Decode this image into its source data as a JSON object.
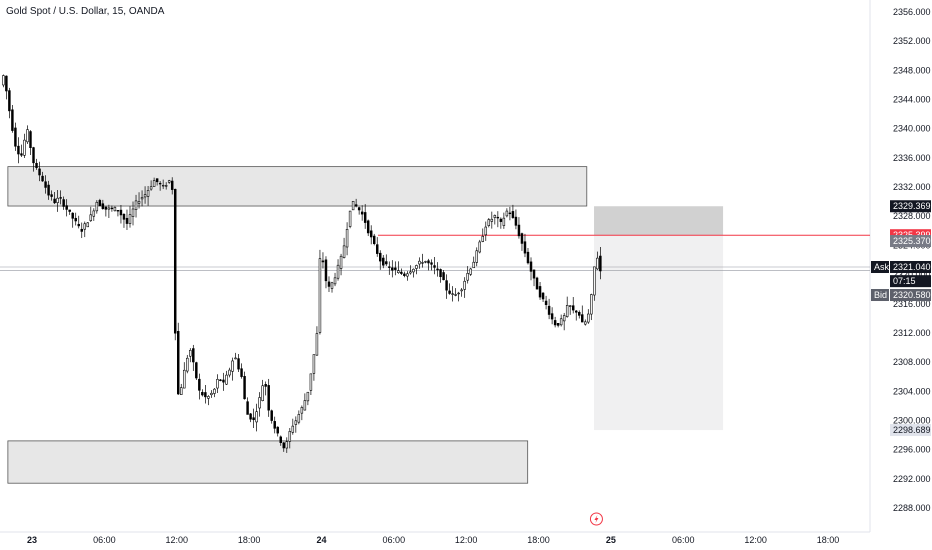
{
  "header": {
    "title": "Gold Spot / U.S. Dollar, 15, OANDA"
  },
  "colors": {
    "bull_fill": "#ffffff",
    "bear_fill": "#000000",
    "wick": "#000000",
    "zone_fill": "#e7e7e7",
    "zone_stroke": "#555555",
    "stop_fill": "#c9c9c9",
    "target_fill": "#f0f0f1",
    "entry_line": "#f23645",
    "price_line": "#9598a1"
  },
  "chart_data": {
    "type": "candlestick",
    "symbol": "Gold Spot / U.S. Dollar",
    "timeframe": "15",
    "source": "OANDA",
    "yrange": [
      2286,
      2357
    ],
    "y_ticks": [
      2356,
      2352,
      2348,
      2344,
      2340,
      2336,
      2332,
      2328,
      2324,
      2320,
      2316,
      2312,
      2308,
      2304,
      2300,
      2296,
      2292,
      2288
    ],
    "y_tick_labels": [
      "2356.000",
      "2352.000",
      "2348.000",
      "2344.000",
      "2340.000",
      "2336.000",
      "2332.000",
      "2328.000",
      "2324.000",
      "2320.000",
      "2316.000",
      "2312.000",
      "2308.000",
      "2304.000",
      "2300.000",
      "2296.000",
      "2292.000",
      "2288.000"
    ],
    "x_tick_labels": [
      {
        "label": "23",
        "hour": 0,
        "bold": true
      },
      {
        "label": "06:00",
        "hour": 6,
        "bold": false
      },
      {
        "label": "12:00",
        "hour": 12,
        "bold": false
      },
      {
        "label": "18:00",
        "hour": 18,
        "bold": false
      },
      {
        "label": "24",
        "hour": 24,
        "bold": true
      },
      {
        "label": "06:00",
        "hour": 30,
        "bold": false
      },
      {
        "label": "12:00",
        "hour": 36,
        "bold": false
      },
      {
        "label": "18:00",
        "hour": 42,
        "bold": false
      },
      {
        "label": "25",
        "hour": 48,
        "bold": true
      },
      {
        "label": "06:00",
        "hour": 54,
        "bold": false
      },
      {
        "label": "12:00",
        "hour": 60,
        "bold": false
      },
      {
        "label": "18:00",
        "hour": 66,
        "bold": false
      }
    ],
    "x_hour_range": [
      -2.6,
      70
    ],
    "candle_interval_hours": 0.25,
    "anchors": [
      [
        -2.5,
        2346
      ],
      [
        -2.2,
        2347.5
      ],
      [
        -1.9,
        2344
      ],
      [
        -1.6,
        2341
      ],
      [
        -1.3,
        2338
      ],
      [
        -0.8,
        2336
      ],
      [
        -0.3,
        2340
      ],
      [
        0.3,
        2335
      ],
      [
        1.0,
        2333
      ],
      [
        1.5,
        2331
      ],
      [
        2.0,
        2330
      ],
      [
        2.4,
        2330.5
      ],
      [
        3.0,
        2329
      ],
      [
        3.8,
        2327
      ],
      [
        4.2,
        2326
      ],
      [
        5.0,
        2328
      ],
      [
        5.5,
        2330
      ],
      [
        6.2,
        2329
      ],
      [
        7.2,
        2329
      ],
      [
        8.0,
        2327
      ],
      [
        8.8,
        2330
      ],
      [
        9.5,
        2331
      ],
      [
        10.3,
        2333
      ],
      [
        11.0,
        2332
      ],
      [
        11.6,
        2333
      ],
      [
        11.85,
        2331
      ],
      [
        12.05,
        2306
      ],
      [
        12.3,
        2303
      ],
      [
        12.9,
        2308
      ],
      [
        13.2,
        2310
      ],
      [
        13.6,
        2307
      ],
      [
        14.0,
        2304
      ],
      [
        14.6,
        2303
      ],
      [
        15.2,
        2304
      ],
      [
        15.6,
        2306
      ],
      [
        16.0,
        2305
      ],
      [
        16.5,
        2307
      ],
      [
        16.9,
        2309
      ],
      [
        17.5,
        2306
      ],
      [
        17.9,
        2301
      ],
      [
        18.5,
        2300
      ],
      [
        19.0,
        2303
      ],
      [
        19.4,
        2306
      ],
      [
        19.8,
        2301
      ],
      [
        20.5,
        2298
      ],
      [
        21.1,
        2296
      ],
      [
        21.6,
        2299
      ],
      [
        22.0,
        2300
      ],
      [
        22.6,
        2302
      ],
      [
        23.0,
        2304
      ],
      [
        23.3,
        2307
      ],
      [
        23.7,
        2311
      ],
      [
        23.95,
        2315
      ],
      [
        24.05,
        2329
      ],
      [
        24.3,
        2320
      ],
      [
        24.8,
        2318
      ],
      [
        25.3,
        2320
      ],
      [
        25.9,
        2323
      ],
      [
        26.3,
        2327
      ],
      [
        26.6,
        2330
      ],
      [
        27.2,
        2329
      ],
      [
        27.6,
        2328
      ],
      [
        28.0,
        2326
      ],
      [
        28.5,
        2324
      ],
      [
        29.0,
        2322
      ],
      [
        29.6,
        2321
      ],
      [
        30.3,
        2320.5
      ],
      [
        31.0,
        2320
      ],
      [
        31.8,
        2321
      ],
      [
        32.6,
        2322
      ],
      [
        33.4,
        2321
      ],
      [
        34.0,
        2320
      ],
      [
        34.5,
        2318
      ],
      [
        35.1,
        2317
      ],
      [
        35.7,
        2318
      ],
      [
        36.2,
        2320
      ],
      [
        36.8,
        2322
      ],
      [
        37.4,
        2325
      ],
      [
        37.8,
        2327
      ],
      [
        38.5,
        2328
      ],
      [
        39.0,
        2327
      ],
      [
        39.6,
        2329
      ],
      [
        40.2,
        2327
      ],
      [
        40.6,
        2325
      ],
      [
        41.0,
        2323
      ],
      [
        41.4,
        2321
      ],
      [
        41.8,
        2319
      ],
      [
        42.3,
        2317
      ],
      [
        42.7,
        2316
      ],
      [
        43.2,
        2314
      ],
      [
        43.6,
        2313
      ],
      [
        44.2,
        2314
      ],
      [
        44.6,
        2316
      ],
      [
        45.0,
        2315
      ],
      [
        45.4,
        2315
      ],
      [
        45.8,
        2313
      ],
      [
        46.2,
        2314
      ],
      [
        46.6,
        2318
      ],
      [
        46.85,
        2323
      ],
      [
        47.1,
        2322
      ],
      [
        47.25,
        2320.5
      ]
    ],
    "zones": [
      {
        "name": "upper-zone",
        "h0": -2.0,
        "h1": 46.0,
        "top": 2334.8,
        "bottom": 2329.4
      },
      {
        "name": "lower-zone",
        "h0": -2.0,
        "h1": 41.1,
        "top": 2297.2,
        "bottom": 2291.4
      }
    ],
    "position": {
      "h0": 46.6,
      "h1": 57.3,
      "stop": 2329.369,
      "entry": 2325.399,
      "target": 2298.689,
      "entry_line_end_hour": 70
    },
    "price_lines": [
      2321.04,
      2320.58
    ],
    "price_tags": [
      {
        "label": "",
        "value": "2329.369",
        "price": 2329.369,
        "bg": "#131722",
        "fg": "#ffffff"
      },
      {
        "label": "",
        "value": "2325.399",
        "price": 2325.399,
        "bg": "#f23645",
        "fg": "#ffffff"
      },
      {
        "label": "",
        "value": "2325.370",
        "price": 2324.6,
        "bg": "#787b86",
        "fg": "#ffffff"
      },
      {
        "label": "Ask",
        "value": "2321.040",
        "price": 2321.04,
        "bg": "#131722",
        "fg": "#ffffff"
      },
      {
        "label": "",
        "value": "07:15",
        "price": 2319.1,
        "bg": "#131722",
        "fg": "#ffffff"
      },
      {
        "label": "Bid",
        "value": "2320.580",
        "price": 2317.2,
        "bg": "#5d606b",
        "fg": "#ffffff"
      },
      {
        "label": "",
        "value": "2298.689",
        "price": 2298.689,
        "bg": "#e0e3eb",
        "fg": "#131722"
      }
    ],
    "event_marker": {
      "hour": 46.8,
      "icon": "flash-icon"
    }
  }
}
